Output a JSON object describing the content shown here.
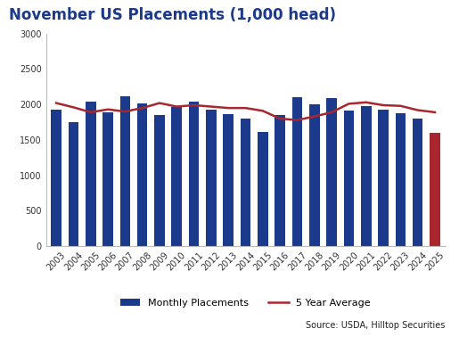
{
  "chart_data": {
    "type": "bar",
    "title": "November US Placements (1,000 head)",
    "annotations": [
      "Source: USDA, Hilltop Securities"
    ],
    "categories": [
      "2003",
      "2004",
      "2005",
      "2006",
      "2007",
      "2008",
      "2009",
      "2010",
      "2011",
      "2012",
      "2013",
      "2014",
      "2015",
      "2016",
      "2017",
      "2018",
      "2019",
      "2020",
      "2021",
      "2022",
      "2023",
      "2024",
      "2025"
    ],
    "series": [
      {
        "name": "Monthly Placements",
        "type": "bar",
        "color": "#1c3a8c",
        "colors": [
          "#1c3a8c",
          "#1c3a8c",
          "#1c3a8c",
          "#1c3a8c",
          "#1c3a8c",
          "#1c3a8c",
          "#1c3a8c",
          "#1c3a8c",
          "#1c3a8c",
          "#1c3a8c",
          "#1c3a8c",
          "#1c3a8c",
          "#1c3a8c",
          "#1c3a8c",
          "#1c3a8c",
          "#1c3a8c",
          "#1c3a8c",
          "#1c3a8c",
          "#1c3a8c",
          "#1c3a8c",
          "#1c3a8c",
          "#1c3a8c",
          "#a8262e"
        ],
        "values": [
          1930,
          1750,
          2040,
          1890,
          2120,
          2020,
          1850,
          1970,
          2040,
          1930,
          1860,
          1800,
          1610,
          1850,
          2100,
          2000,
          2090,
          1910,
          1980,
          1930,
          1870,
          1800,
          1600
        ]
      },
      {
        "name": "5 Year Average",
        "type": "line",
        "color": "#a8262e",
        "values": [
          2020,
          1960,
          1890,
          1930,
          1900,
          1950,
          2020,
          1970,
          1990,
          1970,
          1950,
          1950,
          1910,
          1800,
          1780,
          1830,
          1890,
          2010,
          2030,
          1990,
          1980,
          1920,
          1890
        ]
      }
    ],
    "ylim": [
      0,
      3000
    ],
    "yticks": [
      0,
      500,
      1000,
      1500,
      2000,
      2500,
      3000
    ],
    "grid": false,
    "legend": "lower center"
  }
}
